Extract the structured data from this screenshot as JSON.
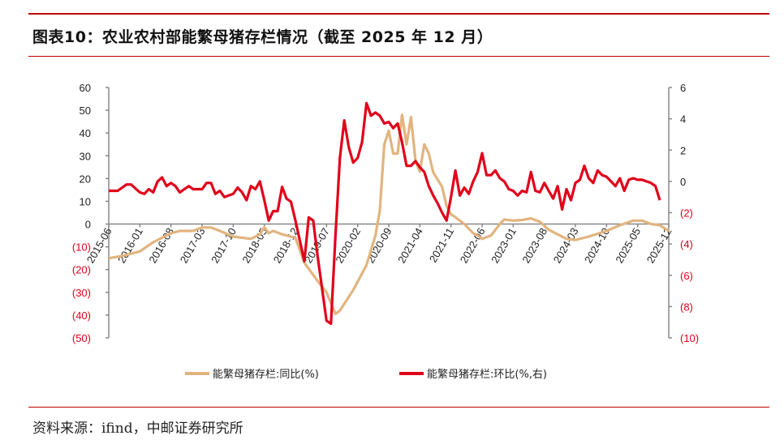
{
  "title": "图表10：农业农村部能繁母猪存栏情况（截至 2025 年 12 月）",
  "source": "资料来源：ifind，中邮证券研究所",
  "colors": {
    "yoy": "#e2b47f",
    "mom": "#e0001a",
    "negative_label": "#e0001a",
    "rule": "#c00000"
  },
  "chart_data": {
    "type": "line",
    "title": "",
    "xlabel": "",
    "ylabel": "",
    "x_range": [
      "2015-06",
      "2025-12"
    ],
    "x_ticks": [
      "2015-06",
      "2016-01",
      "2016-08",
      "2017-03",
      "2017-10",
      "2018-05",
      "2018-12",
      "2019-07",
      "2020-02",
      "2020-09",
      "2021-04",
      "2021-11",
      "2022-06",
      "2023-01",
      "2023-08",
      "2024-03",
      "2024-10",
      "2025-05",
      "2025-12"
    ],
    "y_left": {
      "range": [
        -50,
        60
      ],
      "ticks": [
        "60",
        "50",
        "40",
        "30",
        "20",
        "10",
        "0",
        "(10)",
        "(20)",
        "(30)",
        "(40)",
        "(50)"
      ],
      "tick_values": [
        60,
        50,
        40,
        30,
        20,
        10,
        0,
        -10,
        -20,
        -30,
        -40,
        -50
      ]
    },
    "y_right": {
      "range": [
        -10,
        6
      ],
      "ticks": [
        "6",
        "4",
        "2",
        "0",
        "(2)",
        "(4)",
        "(6)",
        "(8)",
        "(10)"
      ],
      "tick_values": [
        6,
        4,
        2,
        0,
        -2,
        -4,
        -6,
        -8,
        -10
      ]
    },
    "grid": false,
    "legend_placement": "bottom",
    "series": [
      {
        "name": "能繁母猪存栏:同比(%)",
        "axis": "left",
        "color": "#e2b47f",
        "points": [
          [
            "2015-06",
            -15
          ],
          [
            "2015-09",
            -14
          ],
          [
            "2016-01",
            -12
          ],
          [
            "2016-04",
            -8
          ],
          [
            "2016-08",
            -4
          ],
          [
            "2016-10",
            -3
          ],
          [
            "2017-01",
            -3
          ],
          [
            "2017-03",
            -1.5
          ],
          [
            "2017-05",
            -1.5
          ],
          [
            "2017-07",
            -3
          ],
          [
            "2017-10",
            -5.5
          ],
          [
            "2018-02",
            -6.5
          ],
          [
            "2018-04",
            -4.5
          ],
          [
            "2018-05",
            -1.4
          ],
          [
            "2018-06",
            -4
          ],
          [
            "2018-07",
            -3
          ],
          [
            "2018-09",
            -4.5
          ],
          [
            "2018-12",
            -6
          ],
          [
            "2019-02",
            -17
          ],
          [
            "2019-05",
            -25
          ],
          [
            "2019-07",
            -30
          ],
          [
            "2019-09",
            -39.5
          ],
          [
            "2019-10",
            -38
          ],
          [
            "2020-01",
            -29
          ],
          [
            "2020-04",
            -18
          ],
          [
            "2020-06",
            -5
          ],
          [
            "2020-07",
            6
          ],
          [
            "2020-08",
            35
          ],
          [
            "2020-09",
            41
          ],
          [
            "2020-10",
            31
          ],
          [
            "2020-11",
            31
          ],
          [
            "2020-12",
            48
          ],
          [
            "2021-01",
            35
          ],
          [
            "2021-02",
            47
          ],
          [
            "2021-03",
            28
          ],
          [
            "2021-04",
            23
          ],
          [
            "2021-05",
            35
          ],
          [
            "2021-06",
            31
          ],
          [
            "2021-07",
            22.7
          ],
          [
            "2021-09",
            16.4
          ],
          [
            "2021-10",
            8
          ],
          [
            "2021-11",
            4.3
          ],
          [
            "2021-12",
            3
          ],
          [
            "2022-02",
            0
          ],
          [
            "2022-04",
            -4
          ],
          [
            "2022-05",
            -5
          ],
          [
            "2022-06",
            -6.5
          ],
          [
            "2022-08",
            -5
          ],
          [
            "2022-10",
            0
          ],
          [
            "2022-11",
            2
          ],
          [
            "2023-01",
            1.5
          ],
          [
            "2023-03",
            1.8
          ],
          [
            "2023-05",
            2.5
          ],
          [
            "2023-07",
            1
          ],
          [
            "2023-09",
            -2.5
          ],
          [
            "2024-01",
            -6.5
          ],
          [
            "2024-03",
            -7
          ],
          [
            "2024-06",
            -5.5
          ],
          [
            "2024-10",
            -3
          ],
          [
            "2025-01",
            -0.5
          ],
          [
            "2025-04",
            1.5
          ],
          [
            "2025-06",
            1.5
          ],
          [
            "2025-08",
            0
          ],
          [
            "2025-10",
            -0.5
          ],
          [
            "2025-12",
            -3
          ]
        ]
      },
      {
        "name": "能繁母猪存栏:环比(%,右)",
        "axis": "right",
        "color": "#e0001a",
        "points": [
          [
            "2015-06",
            -0.6
          ],
          [
            "2015-08",
            -0.6
          ],
          [
            "2015-10",
            -0.2
          ],
          [
            "2015-11",
            -0.2
          ],
          [
            "2016-01",
            -0.7
          ],
          [
            "2016-02",
            -0.8
          ],
          [
            "2016-03",
            -0.5
          ],
          [
            "2016-04",
            -0.7
          ],
          [
            "2016-05",
            0
          ],
          [
            "2016-06",
            0.25
          ],
          [
            "2016-07",
            -0.3
          ],
          [
            "2016-08",
            -0.1
          ],
          [
            "2016-09",
            -0.3
          ],
          [
            "2016-10",
            -0.7
          ],
          [
            "2016-11",
            -0.5
          ],
          [
            "2016-12",
            -0.3
          ],
          [
            "2017-01",
            -0.5
          ],
          [
            "2017-03",
            -0.5
          ],
          [
            "2017-04",
            -0.1
          ],
          [
            "2017-05",
            -0.1
          ],
          [
            "2017-06",
            -0.8
          ],
          [
            "2017-07",
            -0.6
          ],
          [
            "2017-08",
            -1
          ],
          [
            "2017-10",
            -0.8
          ],
          [
            "2017-11",
            -0.4
          ],
          [
            "2017-12",
            -0.7
          ],
          [
            "2018-01",
            -1.2
          ],
          [
            "2018-02",
            -0.3
          ],
          [
            "2018-03",
            -0.5
          ],
          [
            "2018-04",
            0
          ],
          [
            "2018-05",
            -1.2
          ],
          [
            "2018-06",
            -2.5
          ],
          [
            "2018-07",
            -1.9
          ],
          [
            "2018-08",
            -1.9
          ],
          [
            "2018-09",
            -0.35
          ],
          [
            "2018-10",
            -1.1
          ],
          [
            "2018-11",
            -1.3
          ],
          [
            "2018-12",
            -2.5
          ],
          [
            "2019-02",
            -5.1
          ],
          [
            "2019-03",
            -2.3
          ],
          [
            "2019-04",
            -2.5
          ],
          [
            "2019-05",
            -4.8
          ],
          [
            "2019-07",
            -8.9
          ],
          [
            "2019-08",
            -9.1
          ],
          [
            "2019-09",
            -3.5
          ],
          [
            "2019-10",
            1.5
          ],
          [
            "2019-11",
            3.9
          ],
          [
            "2019-12",
            2.2
          ],
          [
            "2020-01",
            1.2
          ],
          [
            "2020-02",
            1.5
          ],
          [
            "2020-03",
            2.5
          ],
          [
            "2020-04",
            5.0
          ],
          [
            "2020-05",
            4.2
          ],
          [
            "2020-06",
            4.4
          ],
          [
            "2020-07",
            4.2
          ],
          [
            "2020-08",
            3.7
          ],
          [
            "2020-09",
            3.8
          ],
          [
            "2020-10",
            3.4
          ],
          [
            "2020-11",
            3.7
          ],
          [
            "2020-12",
            2.5
          ],
          [
            "2021-01",
            1.0
          ],
          [
            "2021-02",
            1.0
          ],
          [
            "2021-03",
            1.3
          ],
          [
            "2021-04",
            0.9
          ],
          [
            "2021-05",
            0.6
          ],
          [
            "2021-06",
            -0.3
          ],
          [
            "2021-07",
            -0.9
          ],
          [
            "2021-08",
            -1.4
          ],
          [
            "2021-09",
            -2.0
          ],
          [
            "2021-10",
            -2.5
          ],
          [
            "2021-11",
            -1.0
          ],
          [
            "2021-12",
            0.7
          ],
          [
            "2022-01",
            -0.9
          ],
          [
            "2022-02",
            -0.4
          ],
          [
            "2022-03",
            -0.8
          ],
          [
            "2022-04",
            0
          ],
          [
            "2022-05",
            0.6
          ],
          [
            "2022-06",
            1.8
          ],
          [
            "2022-07",
            0.4
          ],
          [
            "2022-08",
            0.4
          ],
          [
            "2022-09",
            0.7
          ],
          [
            "2022-10",
            0.2
          ],
          [
            "2022-11",
            0
          ],
          [
            "2022-12",
            -0.5
          ],
          [
            "2023-01",
            -0.6
          ],
          [
            "2023-02",
            -0.9
          ],
          [
            "2023-03",
            -0.6
          ],
          [
            "2023-04",
            -0.7
          ],
          [
            "2023-05",
            0.6
          ],
          [
            "2023-06",
            -0.6
          ],
          [
            "2023-07",
            -0.7
          ],
          [
            "2023-08",
            -0.1
          ],
          [
            "2023-09",
            -0.6
          ],
          [
            "2023-10",
            -1.1
          ],
          [
            "2023-11",
            -0.3
          ],
          [
            "2023-12",
            -1.8
          ],
          [
            "2024-01",
            -0.5
          ],
          [
            "2024-02",
            -1.2
          ],
          [
            "2024-03",
            -0.1
          ],
          [
            "2024-04",
            0.1
          ],
          [
            "2024-05",
            1.0
          ],
          [
            "2024-06",
            0.2
          ],
          [
            "2024-07",
            -0.1
          ],
          [
            "2024-08",
            0.7
          ],
          [
            "2024-09",
            0.4
          ],
          [
            "2024-10",
            0.3
          ],
          [
            "2024-11",
            0.0
          ],
          [
            "2024-12",
            -0.3
          ],
          [
            "2025-01",
            0.2
          ],
          [
            "2025-02",
            -0.6
          ],
          [
            "2025-03",
            0.1
          ],
          [
            "2025-04",
            0.2
          ],
          [
            "2025-05",
            0.1
          ],
          [
            "2025-06",
            0.1
          ],
          [
            "2025-07",
            0.0
          ],
          [
            "2025-08",
            -0.1
          ],
          [
            "2025-09",
            -0.3
          ],
          [
            "2025-10",
            -1.2
          ]
        ]
      }
    ]
  }
}
